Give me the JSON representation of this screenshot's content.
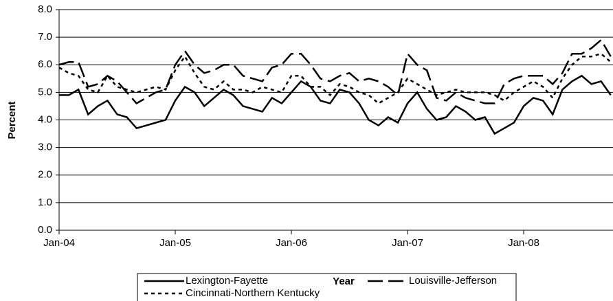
{
  "chart_data": {
    "type": "line",
    "x_label": "Year",
    "y_label": "Percent",
    "categories": [
      "Jan-04",
      null,
      null,
      null,
      null,
      null,
      null,
      null,
      null,
      null,
      null,
      null,
      "Jan-05",
      null,
      null,
      null,
      null,
      null,
      null,
      null,
      null,
      null,
      null,
      null,
      "Jan-06",
      null,
      null,
      null,
      null,
      null,
      null,
      null,
      null,
      null,
      null,
      null,
      "Jan-07",
      null,
      null,
      null,
      null,
      null,
      null,
      null,
      null,
      null,
      null,
      null,
      "Jan-08",
      null,
      null,
      null,
      null,
      null,
      null,
      null,
      null,
      null
    ],
    "series": [
      {
        "name": "Lexington-Fayette",
        "color": "#000000",
        "dash": "solid",
        "values": [
          4.9,
          4.9,
          5.1,
          4.2,
          4.5,
          4.7,
          4.2,
          4.1,
          3.7,
          3.8,
          3.9,
          4.0,
          4.7,
          5.2,
          5.0,
          4.5,
          4.8,
          5.1,
          4.9,
          4.5,
          4.4,
          4.3,
          4.8,
          4.6,
          5.0,
          5.4,
          5.2,
          4.7,
          4.6,
          5.1,
          5.0,
          4.6,
          4.0,
          3.8,
          4.1,
          3.9,
          4.6,
          5.0,
          4.4,
          4.0,
          4.1,
          4.5,
          4.3,
          4.0,
          4.1,
          3.5,
          3.7,
          3.9,
          4.5,
          4.8,
          4.7,
          4.2,
          5.1,
          5.4,
          5.6,
          5.3,
          5.4,
          4.9
        ]
      },
      {
        "name": "Louisville-Jefferson",
        "color": "#000000",
        "dash": "long",
        "values": [
          6.0,
          6.1,
          6.1,
          5.2,
          5.3,
          5.6,
          5.4,
          5.0,
          4.6,
          4.8,
          5.0,
          5.1,
          6.0,
          6.5,
          6.0,
          5.7,
          5.8,
          6.0,
          6.0,
          5.6,
          5.5,
          5.4,
          5.9,
          6.0,
          6.4,
          6.4,
          6.0,
          5.5,
          5.4,
          5.6,
          5.7,
          5.4,
          5.5,
          5.4,
          5.2,
          4.9,
          6.4,
          6.0,
          5.8,
          4.8,
          4.7,
          5.0,
          4.8,
          4.7,
          4.6,
          4.6,
          5.3,
          5.5,
          5.6,
          5.6,
          5.6,
          5.3,
          5.7,
          6.4,
          6.4,
          6.6,
          6.9,
          6.3
        ]
      },
      {
        "name": "Cincinnati-Northern Kentucky",
        "color": "#000000",
        "dash": "short",
        "values": [
          5.9,
          5.7,
          5.6,
          5.1,
          5.0,
          5.6,
          5.2,
          5.1,
          5.0,
          5.1,
          5.2,
          5.1,
          5.8,
          6.3,
          5.7,
          5.2,
          5.1,
          5.4,
          5.1,
          5.1,
          5.0,
          5.2,
          5.1,
          5.0,
          5.6,
          5.6,
          5.2,
          5.2,
          4.9,
          5.3,
          5.2,
          5.0,
          4.9,
          4.6,
          4.8,
          5.0,
          5.5,
          5.3,
          5.1,
          4.9,
          5.0,
          5.1,
          5.0,
          5.0,
          5.0,
          4.9,
          4.7,
          5.0,
          5.2,
          5.4,
          5.2,
          4.8,
          5.5,
          6.0,
          6.3,
          6.3,
          6.4,
          6.1
        ]
      }
    ],
    "ylim": [
      0,
      8
    ],
    "yticks": [
      {
        "value": 0,
        "label": "0.0"
      },
      {
        "value": 1,
        "label": "1.0"
      },
      {
        "value": 2,
        "label": "2.0"
      },
      {
        "value": 3,
        "label": "3.0"
      },
      {
        "value": 4,
        "label": "4.0"
      },
      {
        "value": 5,
        "label": "5.0"
      },
      {
        "value": 6,
        "label": "6.0"
      },
      {
        "value": 7,
        "label": "7.0"
      },
      {
        "value": 8,
        "label": "8.0"
      }
    ],
    "grid": true
  }
}
